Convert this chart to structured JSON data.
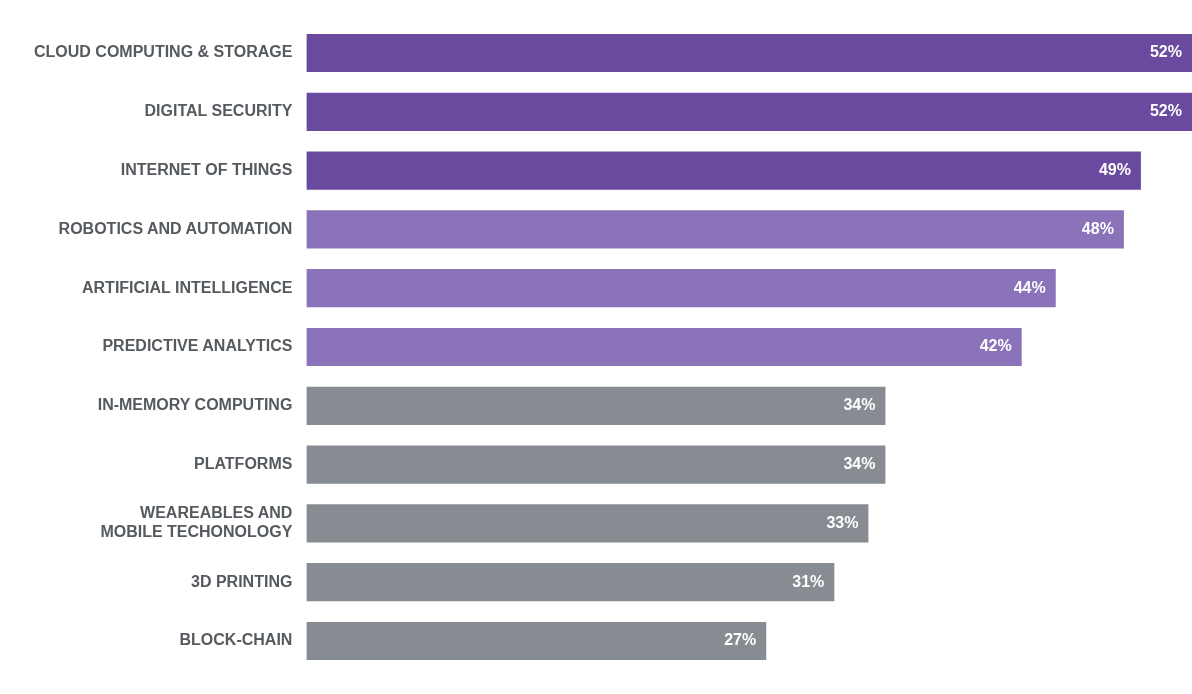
{
  "chart_data": {
    "type": "bar",
    "orientation": "horizontal",
    "categories": [
      "CLOUD COMPUTING & STORAGE",
      "DIGITAL SECURITY",
      "INTERNET OF THINGS",
      "ROBOTICS AND AUTOMATION",
      "ARTIFICIAL INTELLIGENCE",
      "PREDICTIVE ANALYTICS",
      "IN-MEMORY COMPUTING",
      "PLATFORMS",
      "WEAREABLES AND MOBILE TECHONOLOGY",
      "3D PRINTING",
      "BLOCK-CHAIN"
    ],
    "values": [
      52,
      52,
      49,
      48,
      44,
      42,
      34,
      34,
      33,
      31,
      27
    ],
    "colors": [
      "#6a4a9e",
      "#6a4a9e",
      "#6a4a9e",
      "#8a73b9",
      "#8a73b9",
      "#8a73b9",
      "#868c91",
      "#868c91",
      "#868c91",
      "#868c91",
      "#868c91"
    ],
    "value_labels": [
      "52%",
      "52%",
      "49%",
      "48%",
      "44%",
      "42%",
      "34%",
      "34%",
      "33%",
      "31%",
      "27%"
    ],
    "xlim": [
      0,
      52
    ],
    "tick_labels": "y",
    "grid": false,
    "legend": false
  }
}
